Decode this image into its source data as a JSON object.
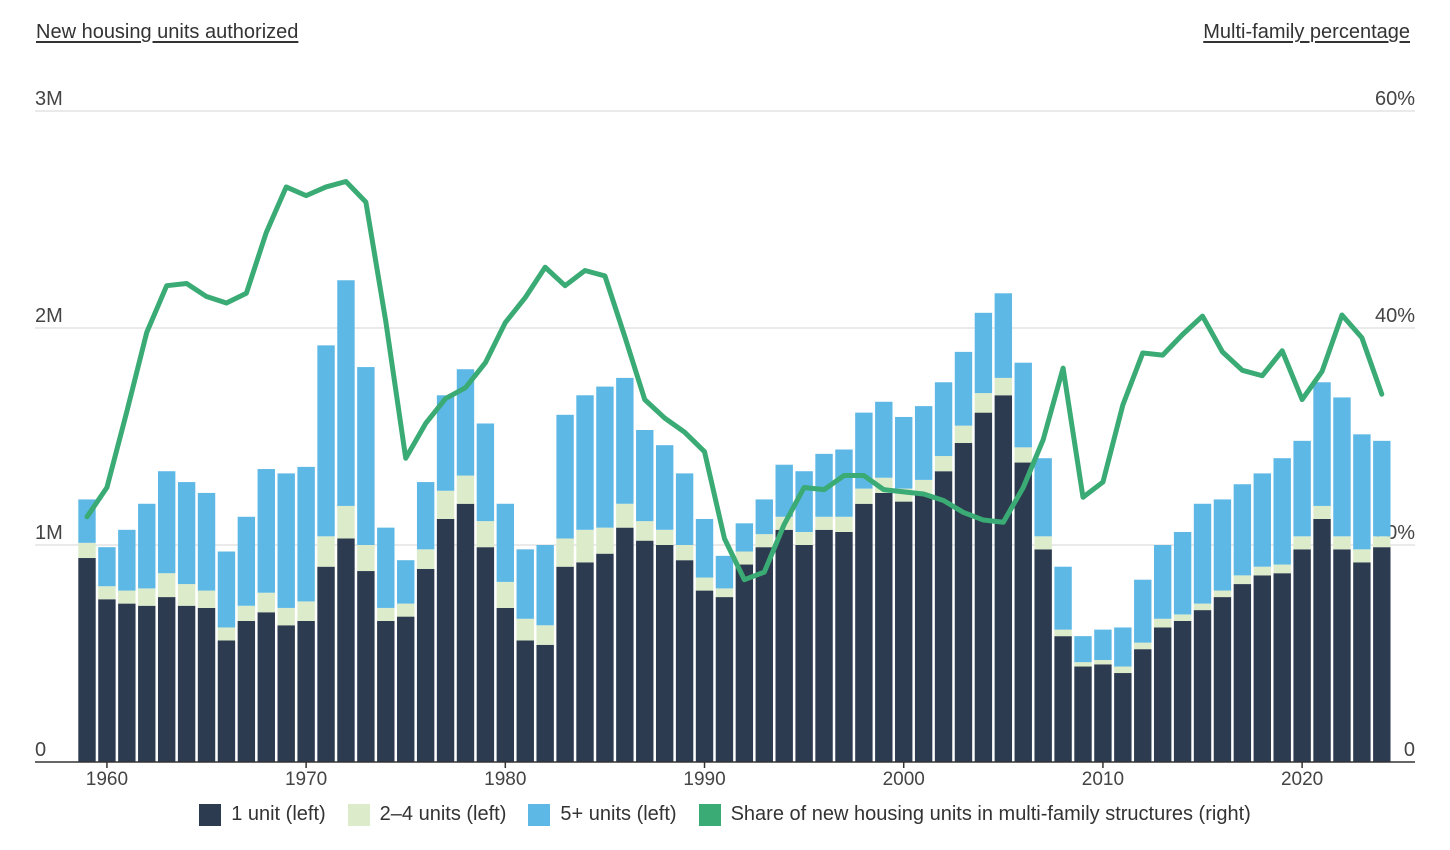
{
  "chart_data": {
    "type": "bar",
    "stacked": true,
    "left_axis_title": "New housing units authorized",
    "right_axis_title": "Multi-family percentage",
    "left_ticks": [
      "0",
      "1M",
      "2M",
      "3M"
    ],
    "left_ylim": [
      0,
      3000000
    ],
    "right_ticks": [
      "0",
      "20%",
      "40%",
      "60%"
    ],
    "right_ylim": [
      0,
      60
    ],
    "x_ticks": [
      "1960",
      "1970",
      "1980",
      "1990",
      "2000",
      "2010",
      "2020"
    ],
    "grid": true,
    "legend_position": "bottom",
    "colors": {
      "one_unit": "#2c3b4f",
      "two_four": "#dcebc9",
      "five_plus": "#5eb8e6",
      "share": "#3aab74"
    },
    "years": [
      1959,
      1960,
      1961,
      1962,
      1963,
      1964,
      1965,
      1966,
      1967,
      1968,
      1969,
      1970,
      1971,
      1972,
      1973,
      1974,
      1975,
      1976,
      1977,
      1978,
      1979,
      1980,
      1981,
      1982,
      1983,
      1984,
      1985,
      1986,
      1987,
      1988,
      1989,
      1990,
      1991,
      1992,
      1993,
      1994,
      1995,
      1996,
      1997,
      1998,
      1999,
      2000,
      2001,
      2002,
      2003,
      2004,
      2005,
      2006,
      2007,
      2008,
      2009,
      2010,
      2011,
      2012,
      2013,
      2014,
      2015,
      2016,
      2017,
      2018,
      2019,
      2020,
      2021,
      2022,
      2023,
      2024
    ],
    "series": [
      {
        "name": "1 unit (left)",
        "axis": "left",
        "unit": "millions",
        "values": [
          0.94,
          0.75,
          0.73,
          0.72,
          0.76,
          0.72,
          0.71,
          0.56,
          0.65,
          0.69,
          0.63,
          0.65,
          0.9,
          1.03,
          0.88,
          0.65,
          0.67,
          0.89,
          1.12,
          1.19,
          0.99,
          0.71,
          0.56,
          0.54,
          0.9,
          0.92,
          0.96,
          1.08,
          1.02,
          1.0,
          0.93,
          0.79,
          0.76,
          0.91,
          0.99,
          1.07,
          1.0,
          1.07,
          1.06,
          1.19,
          1.24,
          1.2,
          1.23,
          1.34,
          1.47,
          1.61,
          1.69,
          1.38,
          0.98,
          0.58,
          0.44,
          0.45,
          0.41,
          0.52,
          0.62,
          0.65,
          0.7,
          0.76,
          0.82,
          0.86,
          0.87,
          0.98,
          1.12,
          0.98,
          0.92,
          0.99
        ]
      },
      {
        "name": "2–4 units (left)",
        "axis": "left",
        "unit": "millions",
        "values": [
          0.07,
          0.06,
          0.06,
          0.08,
          0.11,
          0.1,
          0.08,
          0.06,
          0.07,
          0.09,
          0.08,
          0.09,
          0.14,
          0.15,
          0.12,
          0.06,
          0.06,
          0.09,
          0.13,
          0.13,
          0.12,
          0.12,
          0.1,
          0.09,
          0.13,
          0.15,
          0.12,
          0.11,
          0.09,
          0.07,
          0.07,
          0.06,
          0.04,
          0.06,
          0.06,
          0.06,
          0.06,
          0.06,
          0.07,
          0.07,
          0.07,
          0.06,
          0.07,
          0.07,
          0.08,
          0.09,
          0.08,
          0.07,
          0.06,
          0.03,
          0.02,
          0.02,
          0.03,
          0.03,
          0.04,
          0.03,
          0.03,
          0.03,
          0.04,
          0.04,
          0.04,
          0.06,
          0.06,
          0.06,
          0.06,
          0.05
        ]
      },
      {
        "name": "5+ units (left)",
        "axis": "left",
        "unit": "millions",
        "values": [
          0.2,
          0.18,
          0.28,
          0.39,
          0.47,
          0.47,
          0.45,
          0.35,
          0.41,
          0.57,
          0.62,
          0.62,
          0.88,
          1.04,
          0.82,
          0.37,
          0.2,
          0.31,
          0.44,
          0.49,
          0.45,
          0.36,
          0.32,
          0.37,
          0.57,
          0.62,
          0.65,
          0.58,
          0.42,
          0.39,
          0.33,
          0.27,
          0.15,
          0.13,
          0.16,
          0.24,
          0.28,
          0.29,
          0.31,
          0.35,
          0.35,
          0.33,
          0.34,
          0.34,
          0.34,
          0.37,
          0.39,
          0.39,
          0.36,
          0.29,
          0.12,
          0.14,
          0.18,
          0.29,
          0.34,
          0.38,
          0.46,
          0.42,
          0.42,
          0.43,
          0.49,
          0.44,
          0.57,
          0.64,
          0.53,
          0.44
        ]
      },
      {
        "name": "Share of new housing units in multi-family structures (right)",
        "axis": "right",
        "type": "line",
        "unit": "percent",
        "values": [
          22.6,
          25.3,
          32.3,
          39.6,
          43.9,
          44.1,
          42.9,
          42.3,
          43.2,
          48.8,
          53.0,
          52.2,
          53.0,
          53.5,
          51.6,
          40.6,
          28.0,
          31.2,
          33.5,
          34.5,
          36.8,
          40.5,
          42.8,
          45.6,
          43.9,
          45.3,
          44.8,
          39.2,
          33.4,
          31.7,
          30.4,
          28.6,
          20.6,
          16.8,
          17.5,
          21.9,
          25.3,
          25.1,
          26.4,
          26.4,
          25.1,
          24.9,
          24.7,
          24.1,
          23.0,
          22.3,
          22.1,
          25.3,
          29.7,
          36.3,
          24.4,
          25.8,
          32.9,
          37.7,
          37.5,
          39.4,
          41.1,
          37.8,
          36.1,
          35.6,
          37.9,
          33.4,
          36.0,
          41.2,
          39.1,
          33.9
        ]
      }
    ]
  }
}
